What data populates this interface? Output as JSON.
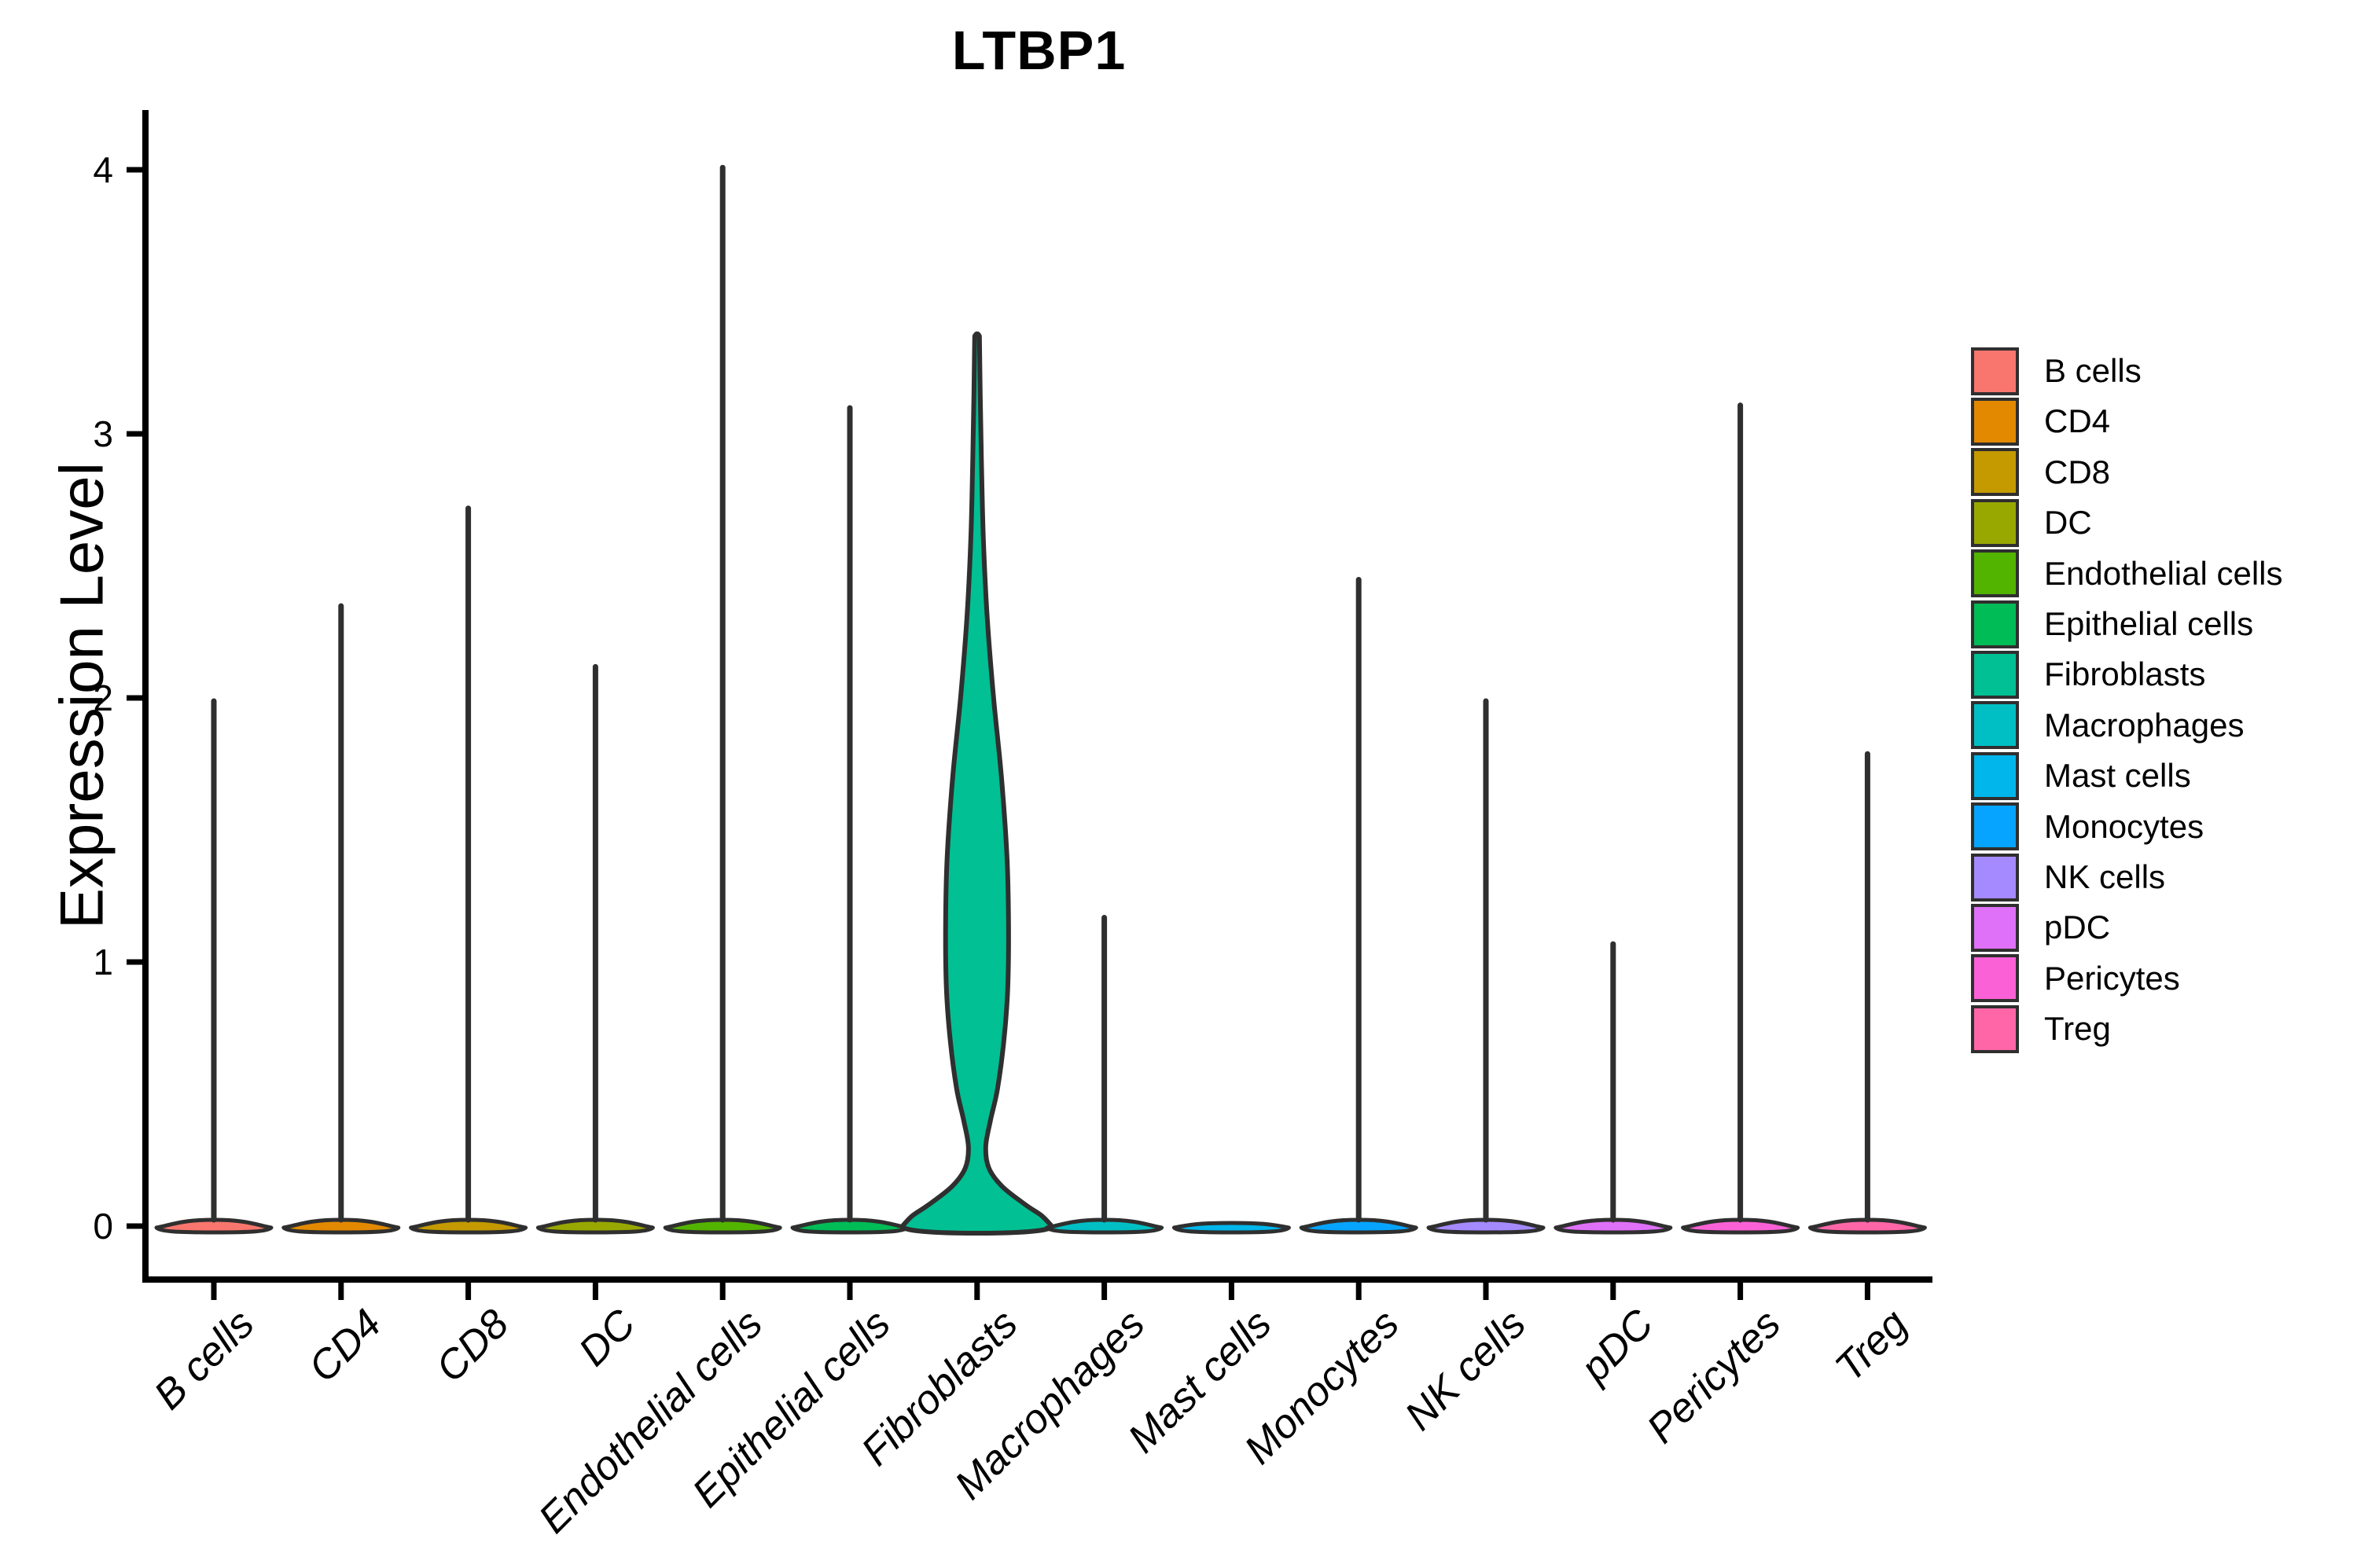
{
  "chart_data": {
    "type": "violin",
    "title": "LTBP1",
    "xlabel": "",
    "ylabel": "Expression Level",
    "ylim": [
      0,
      4.2
    ],
    "yticks": [
      0,
      1,
      2,
      3,
      4
    ],
    "grid": false,
    "legend_position": "right",
    "categories": [
      "B cells",
      "CD4",
      "CD8",
      "DC",
      "Endothelial cells",
      "Epithelial cells",
      "Fibroblasts",
      "Macrophages",
      "Mast cells",
      "Monocytes",
      "NK cells",
      "pDC",
      "Pericytes",
      "Treg"
    ],
    "series": [
      {
        "name": "B cells",
        "color": "#F8766D",
        "max_expression": 2.0,
        "shape": "spike"
      },
      {
        "name": "CD4",
        "color": "#E38900",
        "max_expression": 2.36,
        "shape": "spike"
      },
      {
        "name": "CD8",
        "color": "#C49A00",
        "max_expression": 2.73,
        "shape": "spike"
      },
      {
        "name": "DC",
        "color": "#99A800",
        "max_expression": 2.13,
        "shape": "spike"
      },
      {
        "name": "Endothelial cells",
        "color": "#53B400",
        "max_expression": 4.02,
        "shape": "spike"
      },
      {
        "name": "Epithelial cells",
        "color": "#00BC56",
        "max_expression": 3.11,
        "shape": "spike"
      },
      {
        "name": "Fibroblasts",
        "color": "#00C094",
        "max_expression": 3.37,
        "shape": "violin",
        "profile": [
          [
            3.37,
            3
          ],
          [
            3.15,
            4
          ],
          [
            2.9,
            5.5
          ],
          [
            2.6,
            8
          ],
          [
            2.3,
            13
          ],
          [
            2.0,
            21
          ],
          [
            1.7,
            31
          ],
          [
            1.4,
            38
          ],
          [
            1.15,
            40
          ],
          [
            0.9,
            39
          ],
          [
            0.7,
            34
          ],
          [
            0.52,
            26
          ],
          [
            0.4,
            17
          ],
          [
            0.3,
            11
          ],
          [
            0.22,
            15
          ],
          [
            0.15,
            32
          ],
          [
            0.08,
            62
          ],
          [
            0.04,
            82
          ],
          [
            0,
            95
          ]
        ]
      },
      {
        "name": "Macrophages",
        "color": "#00BFC4",
        "max_expression": 1.18,
        "shape": "spike"
      },
      {
        "name": "Mast cells",
        "color": "#00B6EB",
        "max_expression": 0,
        "shape": "flat"
      },
      {
        "name": "Monocytes",
        "color": "#06A4FF",
        "max_expression": 2.46,
        "shape": "spike"
      },
      {
        "name": "NK cells",
        "color": "#A58AFF",
        "max_expression": 2.0,
        "shape": "spike"
      },
      {
        "name": "pDC",
        "color": "#DF70F8",
        "max_expression": 1.08,
        "shape": "spike"
      },
      {
        "name": "Pericytes",
        "color": "#FB61D7",
        "max_expression": 3.12,
        "shape": "spike"
      },
      {
        "name": "Treg",
        "color": "#FF66A8",
        "max_expression": 1.8,
        "shape": "spike"
      }
    ],
    "style": {
      "outline_color": "#2F2F2F",
      "axis_color": "#000000",
      "background": "#FFFFFF"
    }
  }
}
